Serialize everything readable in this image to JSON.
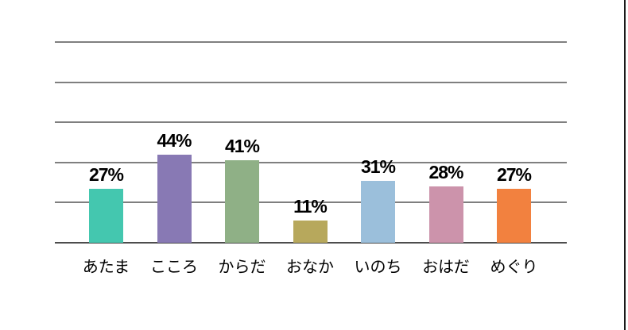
{
  "page": {
    "background": "#ffffff",
    "edge_line_color": "#1a1a1a"
  },
  "chart_data": {
    "type": "bar",
    "title": "",
    "xlabel": "",
    "ylabel": "",
    "categories": [
      "あたま",
      "こころ",
      "からだ",
      "おなか",
      "いのち",
      "おはだ",
      "めぐり"
    ],
    "values": [
      27,
      44,
      41,
      11,
      31,
      28,
      27
    ],
    "value_labels": [
      "27%",
      "44%",
      "41%",
      "11%",
      "31%",
      "28%",
      "27%"
    ],
    "series_colors": [
      "#44C7AF",
      "#8879B4",
      "#8FB086",
      "#B7A85C",
      "#9BBFDB",
      "#CC93AB",
      "#F2813F"
    ],
    "ylim": [
      0,
      100
    ],
    "grid": true,
    "grid_step_percent": 20,
    "gridline_color": "#7f7f7f",
    "legend_position": "none",
    "y_tick_labels_visible": false,
    "text_color": "#000000"
  }
}
